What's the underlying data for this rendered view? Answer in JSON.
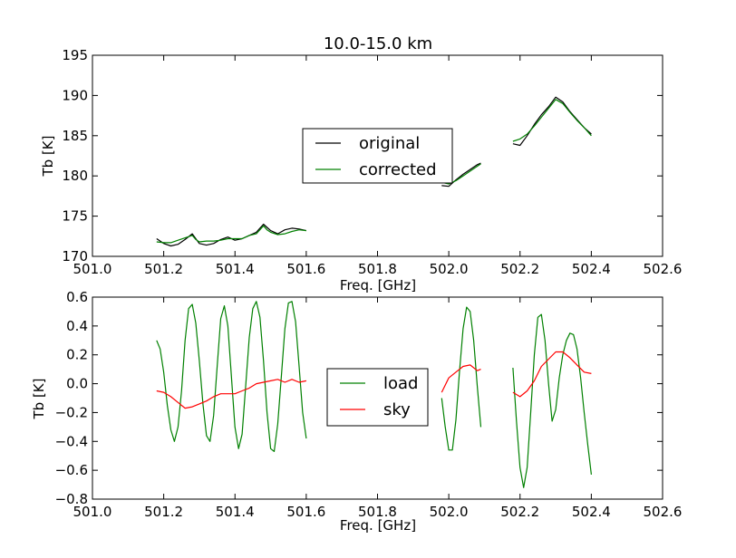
{
  "chart_data": [
    {
      "type": "line",
      "title": "10.0-15.0 km",
      "xlabel": "Freq. [GHz]",
      "ylabel": "Tb [K]",
      "xlim": [
        501.0,
        502.6
      ],
      "ylim": [
        170,
        195
      ],
      "xticks": [
        "501.0",
        "501.2",
        "501.4",
        "501.6",
        "501.8",
        "502.0",
        "502.2",
        "502.4",
        "502.6"
      ],
      "yticks": [
        "170",
        "175",
        "180",
        "185",
        "190",
        "195"
      ],
      "legend_position": "center",
      "series": [
        {
          "name": "original",
          "color": "#000000",
          "segments": [
            [
              [
                501.18,
                172.2
              ],
              [
                501.2,
                171.6
              ],
              [
                501.22,
                171.3
              ],
              [
                501.24,
                171.5
              ],
              [
                501.26,
                172.1
              ],
              [
                501.28,
                172.8
              ],
              [
                501.29,
                172.2
              ],
              [
                501.3,
                171.6
              ],
              [
                501.32,
                171.4
              ],
              [
                501.34,
                171.6
              ],
              [
                501.36,
                172.1
              ],
              [
                501.38,
                172.4
              ],
              [
                501.4,
                172.0
              ],
              [
                501.42,
                172.2
              ],
              [
                501.44,
                172.6
              ],
              [
                501.46,
                173.0
              ],
              [
                501.48,
                174.0
              ],
              [
                501.49,
                173.6
              ],
              [
                501.5,
                173.2
              ],
              [
                501.52,
                172.8
              ],
              [
                501.54,
                173.3
              ],
              [
                501.56,
                173.5
              ],
              [
                501.58,
                173.4
              ],
              [
                501.6,
                173.2
              ]
            ],
            [
              [
                501.98,
                178.8
              ],
              [
                502.0,
                178.7
              ],
              [
                502.02,
                179.5
              ],
              [
                502.04,
                180.2
              ],
              [
                502.06,
                180.8
              ],
              [
                502.08,
                181.4
              ],
              [
                502.09,
                181.6
              ]
            ],
            [
              [
                502.18,
                184.0
              ],
              [
                502.2,
                183.8
              ],
              [
                502.22,
                185.0
              ],
              [
                502.24,
                186.4
              ],
              [
                502.26,
                187.6
              ],
              [
                502.28,
                188.6
              ],
              [
                502.3,
                189.8
              ],
              [
                502.32,
                189.2
              ],
              [
                502.34,
                188.0
              ],
              [
                502.36,
                187.0
              ],
              [
                502.38,
                186.0
              ],
              [
                502.4,
                185.2
              ]
            ]
          ]
        },
        {
          "name": "corrected",
          "color": "#008000",
          "segments": [
            [
              [
                501.18,
                171.8
              ],
              [
                501.2,
                171.7
              ],
              [
                501.22,
                171.7
              ],
              [
                501.24,
                172.0
              ],
              [
                501.26,
                172.3
              ],
              [
                501.28,
                172.6
              ],
              [
                501.29,
                172.1
              ],
              [
                501.3,
                171.8
              ],
              [
                501.32,
                171.9
              ],
              [
                501.34,
                171.9
              ],
              [
                501.36,
                172.0
              ],
              [
                501.38,
                172.2
              ],
              [
                501.4,
                172.2
              ],
              [
                501.42,
                172.2
              ],
              [
                501.44,
                172.6
              ],
              [
                501.46,
                172.8
              ],
              [
                501.48,
                173.8
              ],
              [
                501.49,
                173.3
              ],
              [
                501.5,
                173.0
              ],
              [
                501.52,
                172.7
              ],
              [
                501.54,
                172.8
              ],
              [
                501.56,
                173.1
              ],
              [
                501.58,
                173.3
              ],
              [
                501.6,
                173.2
              ]
            ],
            [
              [
                501.98,
                179.2
              ],
              [
                502.0,
                179.0
              ],
              [
                502.02,
                179.4
              ],
              [
                502.04,
                180.0
              ],
              [
                502.06,
                180.6
              ],
              [
                502.08,
                181.2
              ],
              [
                502.09,
                181.5
              ]
            ],
            [
              [
                502.18,
                184.3
              ],
              [
                502.2,
                184.6
              ],
              [
                502.22,
                185.2
              ],
              [
                502.24,
                186.2
              ],
              [
                502.26,
                187.3
              ],
              [
                502.28,
                188.4
              ],
              [
                502.3,
                189.5
              ],
              [
                502.32,
                189.0
              ],
              [
                502.34,
                187.9
              ],
              [
                502.36,
                186.9
              ],
              [
                502.38,
                186.0
              ],
              [
                502.4,
                185.0
              ]
            ]
          ]
        }
      ]
    },
    {
      "type": "line",
      "title": "",
      "xlabel": "Freq. [GHz]",
      "ylabel": "Tb [K]",
      "xlim": [
        501.0,
        502.6
      ],
      "ylim": [
        -0.8,
        0.6
      ],
      "xticks": [
        "501.0",
        "501.2",
        "501.4",
        "501.6",
        "501.8",
        "502.0",
        "502.2",
        "502.4",
        "502.6"
      ],
      "yticks": [
        "0.6",
        "0.4",
        "0.2",
        "0.0",
        "−0.2",
        "−0.4",
        "−0.6",
        "−0.8"
      ],
      "legend_position": "center",
      "series": [
        {
          "name": "load",
          "color": "#008000",
          "segments": [
            [
              [
                501.18,
                0.3
              ],
              [
                501.19,
                0.24
              ],
              [
                501.2,
                0.08
              ],
              [
                501.21,
                -0.15
              ],
              [
                501.22,
                -0.32
              ],
              [
                501.23,
                -0.4
              ],
              [
                501.24,
                -0.3
              ],
              [
                501.25,
                -0.05
              ],
              [
                501.26,
                0.3
              ],
              [
                501.27,
                0.52
              ],
              [
                501.28,
                0.55
              ],
              [
                501.29,
                0.42
              ],
              [
                501.3,
                0.16
              ],
              [
                501.31,
                -0.14
              ],
              [
                501.32,
                -0.36
              ],
              [
                501.33,
                -0.4
              ],
              [
                501.34,
                -0.22
              ],
              [
                501.35,
                0.12
              ],
              [
                501.36,
                0.45
              ],
              [
                501.37,
                0.54
              ],
              [
                501.38,
                0.4
              ],
              [
                501.39,
                0.05
              ],
              [
                501.4,
                -0.3
              ],
              [
                501.41,
                -0.45
              ],
              [
                501.42,
                -0.35
              ],
              [
                501.43,
                -0.02
              ],
              [
                501.44,
                0.32
              ],
              [
                501.45,
                0.52
              ],
              [
                501.46,
                0.57
              ],
              [
                501.47,
                0.46
              ],
              [
                501.48,
                0.16
              ],
              [
                501.49,
                -0.2
              ],
              [
                501.5,
                -0.45
              ],
              [
                501.51,
                -0.47
              ],
              [
                501.52,
                -0.28
              ],
              [
                501.53,
                0.05
              ],
              [
                501.54,
                0.38
              ],
              [
                501.55,
                0.56
              ],
              [
                501.56,
                0.57
              ],
              [
                501.57,
                0.43
              ],
              [
                501.58,
                0.12
              ],
              [
                501.59,
                -0.2
              ],
              [
                501.6,
                -0.38
              ]
            ],
            [
              [
                501.98,
                -0.1
              ],
              [
                501.99,
                -0.3
              ],
              [
                502.0,
                -0.46
              ],
              [
                502.01,
                -0.46
              ],
              [
                502.02,
                -0.25
              ],
              [
                502.03,
                0.08
              ],
              [
                502.04,
                0.38
              ],
              [
                502.05,
                0.53
              ],
              [
                502.06,
                0.5
              ],
              [
                502.07,
                0.3
              ],
              [
                502.08,
                -0.02
              ],
              [
                502.09,
                -0.3
              ]
            ],
            [
              [
                502.18,
                0.11
              ],
              [
                502.19,
                -0.26
              ],
              [
                502.2,
                -0.58
              ],
              [
                502.21,
                -0.72
              ],
              [
                502.22,
                -0.58
              ],
              [
                502.23,
                -0.2
              ],
              [
                502.24,
                0.2
              ],
              [
                502.25,
                0.46
              ],
              [
                502.26,
                0.48
              ],
              [
                502.27,
                0.3
              ],
              [
                502.28,
                0.0
              ],
              [
                502.29,
                -0.26
              ],
              [
                502.3,
                -0.18
              ],
              [
                502.31,
                0.04
              ],
              [
                502.32,
                0.2
              ],
              [
                502.33,
                0.3
              ],
              [
                502.34,
                0.35
              ],
              [
                502.35,
                0.34
              ],
              [
                502.36,
                0.24
              ],
              [
                502.37,
                0.04
              ],
              [
                502.38,
                -0.2
              ],
              [
                502.39,
                -0.42
              ],
              [
                502.4,
                -0.63
              ]
            ]
          ]
        },
        {
          "name": "sky",
          "color": "#ff0000",
          "segments": [
            [
              [
                501.18,
                -0.05
              ],
              [
                501.2,
                -0.06
              ],
              [
                501.22,
                -0.09
              ],
              [
                501.24,
                -0.13
              ],
              [
                501.26,
                -0.17
              ],
              [
                501.28,
                -0.16
              ],
              [
                501.3,
                -0.14
              ],
              [
                501.32,
                -0.12
              ],
              [
                501.34,
                -0.09
              ],
              [
                501.36,
                -0.07
              ],
              [
                501.38,
                -0.07
              ],
              [
                501.4,
                -0.07
              ],
              [
                501.42,
                -0.05
              ],
              [
                501.44,
                -0.03
              ],
              [
                501.46,
                0.0
              ],
              [
                501.48,
                0.01
              ],
              [
                501.5,
                0.02
              ],
              [
                501.52,
                0.03
              ],
              [
                501.54,
                0.01
              ],
              [
                501.56,
                0.03
              ],
              [
                501.58,
                0.01
              ],
              [
                501.6,
                0.02
              ]
            ],
            [
              [
                501.98,
                -0.06
              ],
              [
                502.0,
                0.04
              ],
              [
                502.02,
                0.08
              ],
              [
                502.04,
                0.12
              ],
              [
                502.06,
                0.13
              ],
              [
                502.08,
                0.09
              ],
              [
                502.09,
                0.1
              ]
            ],
            [
              [
                502.18,
                -0.06
              ],
              [
                502.2,
                -0.09
              ],
              [
                502.22,
                -0.05
              ],
              [
                502.24,
                0.02
              ],
              [
                502.26,
                0.12
              ],
              [
                502.28,
                0.17
              ],
              [
                502.3,
                0.22
              ],
              [
                502.32,
                0.22
              ],
              [
                502.34,
                0.18
              ],
              [
                502.36,
                0.13
              ],
              [
                502.38,
                0.08
              ],
              [
                502.4,
                0.07
              ]
            ]
          ]
        }
      ]
    }
  ]
}
